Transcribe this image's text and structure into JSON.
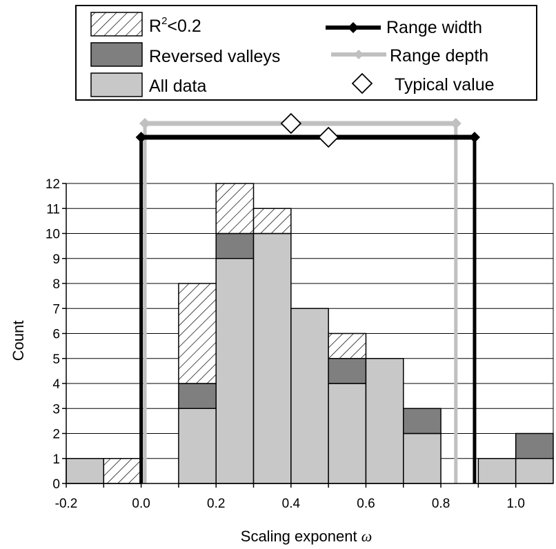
{
  "chart_data": {
    "type": "bar",
    "stacked": true,
    "xlabel": "Scaling exponent",
    "xlabel_symbol": "ω",
    "ylabel": "Count",
    "xlim": [
      -0.2,
      1.1
    ],
    "ylim": [
      0,
      12
    ],
    "grid": "horizontal",
    "x_ticks": [
      "-0.2",
      "0.0",
      "0.2",
      "0.4",
      "0.6",
      "0.8",
      "1.0"
    ],
    "y_ticks": [
      "0",
      "1",
      "2",
      "3",
      "4",
      "5",
      "6",
      "7",
      "8",
      "9",
      "10",
      "11",
      "12"
    ],
    "bins": [
      {
        "from": -0.2,
        "to": -0.1,
        "all_data": 1,
        "reversed_valleys": 0,
        "r2_lt_02": 0
      },
      {
        "from": -0.1,
        "to": 0.0,
        "all_data": 0,
        "reversed_valleys": 0,
        "r2_lt_02": 1
      },
      {
        "from": 0.1,
        "to": 0.2,
        "all_data": 3,
        "reversed_valleys": 1,
        "r2_lt_02": 4
      },
      {
        "from": 0.2,
        "to": 0.3,
        "all_data": 9,
        "reversed_valleys": 1,
        "r2_lt_02": 2
      },
      {
        "from": 0.3,
        "to": 0.4,
        "all_data": 10,
        "reversed_valleys": 0,
        "r2_lt_02": 1
      },
      {
        "from": 0.4,
        "to": 0.5,
        "all_data": 7,
        "reversed_valleys": 0,
        "r2_lt_02": 0
      },
      {
        "from": 0.5,
        "to": 0.6,
        "all_data": 4,
        "reversed_valleys": 1,
        "r2_lt_02": 1
      },
      {
        "from": 0.6,
        "to": 0.7,
        "all_data": 5,
        "reversed_valleys": 0,
        "r2_lt_02": 0
      },
      {
        "from": 0.7,
        "to": 0.8,
        "all_data": 2,
        "reversed_valleys": 1,
        "r2_lt_02": 0
      },
      {
        "from": 0.9,
        "to": 1.0,
        "all_data": 1,
        "reversed_valleys": 0,
        "r2_lt_02": 0
      },
      {
        "from": 1.0,
        "to": 1.1,
        "all_data": 1,
        "reversed_valleys": 1,
        "r2_lt_02": 0
      }
    ],
    "range_width": {
      "from": 0.0,
      "to": 0.89,
      "typical": 0.5,
      "color": "#000000"
    },
    "range_depth": {
      "from": 0.01,
      "to": 0.84,
      "typical": 0.4,
      "color": "#c0c0c0"
    },
    "colors": {
      "all_data": "#c8c8c8",
      "reversed_valleys": "#7f7f7f",
      "r2_lt_02": "#ffffff"
    },
    "legend": {
      "placement": "top",
      "r2_base": "R",
      "r2_sup": "2",
      "r2_rest": "<0.2",
      "reversed_valleys": "Reversed valleys",
      "all_data": "All data",
      "range_width": "Range width",
      "range_depth": "Range depth",
      "typical_value": "Typical value"
    }
  }
}
